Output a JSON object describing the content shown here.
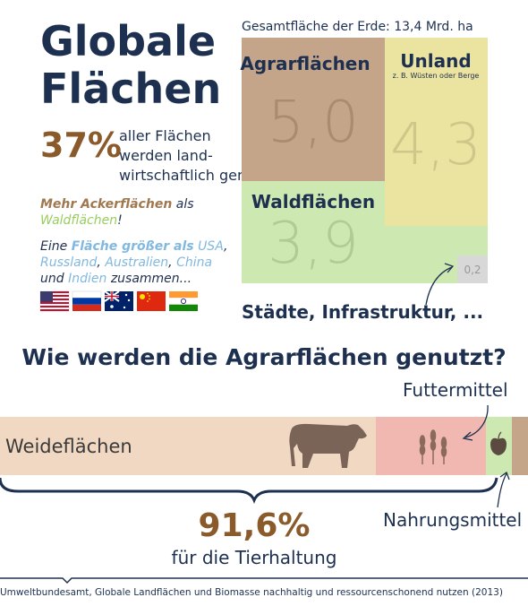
{
  "header": {
    "title_lines": [
      "Globale",
      "Flächen"
    ]
  },
  "stat": {
    "value": "37%",
    "text_lines": [
      "aller Flächen",
      "werden land-",
      "wirtschaftlich genutzt"
    ]
  },
  "notes": [
    [
      "Mehr Ackerflächen",
      "als",
      "Waldflächen",
      "!"
    ],
    [
      "Eine",
      "Fläche größer als",
      "USA",
      ",",
      "Russland",
      ",",
      "Australien",
      ",",
      "China",
      "und",
      "Indien",
      "zusammen..."
    ]
  ],
  "treemap": {
    "caption": "Gesamtfläche der Erde: 13,4 Mrd. ha",
    "blocks": [
      {
        "label": "Agrarflächen",
        "value": "5,0"
      },
      {
        "label": "Unland",
        "sublabel": "z. B. Wüsten oder Berge",
        "value": "4,3"
      },
      {
        "label": "Waldflächen",
        "value": "3,9"
      },
      {
        "label": "Städte, Infrastruktur, ...",
        "value": "0,2"
      }
    ]
  },
  "usage": {
    "title": "Wie werden die Agrarflächen genutzt?",
    "segments": [
      "Weideflächen",
      "Futtermittel",
      "Nahrungsmittel"
    ],
    "share": "91,6%",
    "share_label": "für die Tierhaltung"
  },
  "source": "Umweltbundesamt, Globale Landflächen und Biomasse nachhaltig und ressourcenschonend nutzen (2013)"
}
